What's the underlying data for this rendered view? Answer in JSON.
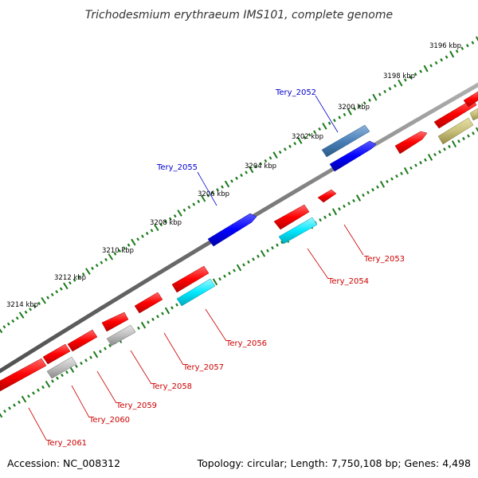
{
  "title": "Trichodesmium erythraeum IMS101, complete genome",
  "footer": {
    "accession": "Accession: NC_008312",
    "summary": "Topology: circular; Length: 7,750,108 bp; Genes: 4,498"
  },
  "kbp_labels": [
    "3196 kbp",
    "3198 kbp",
    "3200 kbp",
    "3202 kbp",
    "3204 kbp",
    "3206 kbp",
    "3208 kbp",
    "3210 kbp",
    "3212 kbp",
    "3214 kbp"
  ],
  "gene_labels": {
    "tery_2052": "Tery_2052",
    "tery_2053": "Tery_2053",
    "tery_2054": "Tery_2054",
    "tery_2055": "Tery_2055",
    "tery_2056": "Tery_2056",
    "tery_2057": "Tery_2057",
    "tery_2058": "Tery_2058",
    "tery_2059": "Tery_2059",
    "tery_2060": "Tery_2060",
    "tery_2061": "Tery_2061"
  },
  "colors": {
    "backbone": "#808080",
    "tick": "#1a7a1a",
    "forward_red": "#ff0000",
    "forward_blue": "#0000ff",
    "steel_blue": "#4a80b8",
    "cyan": "#00e8ff",
    "gray": "#bdbdbd",
    "olive": "#c8c07a",
    "label_red": "#cc0000",
    "label_blue": "#0000cc"
  }
}
